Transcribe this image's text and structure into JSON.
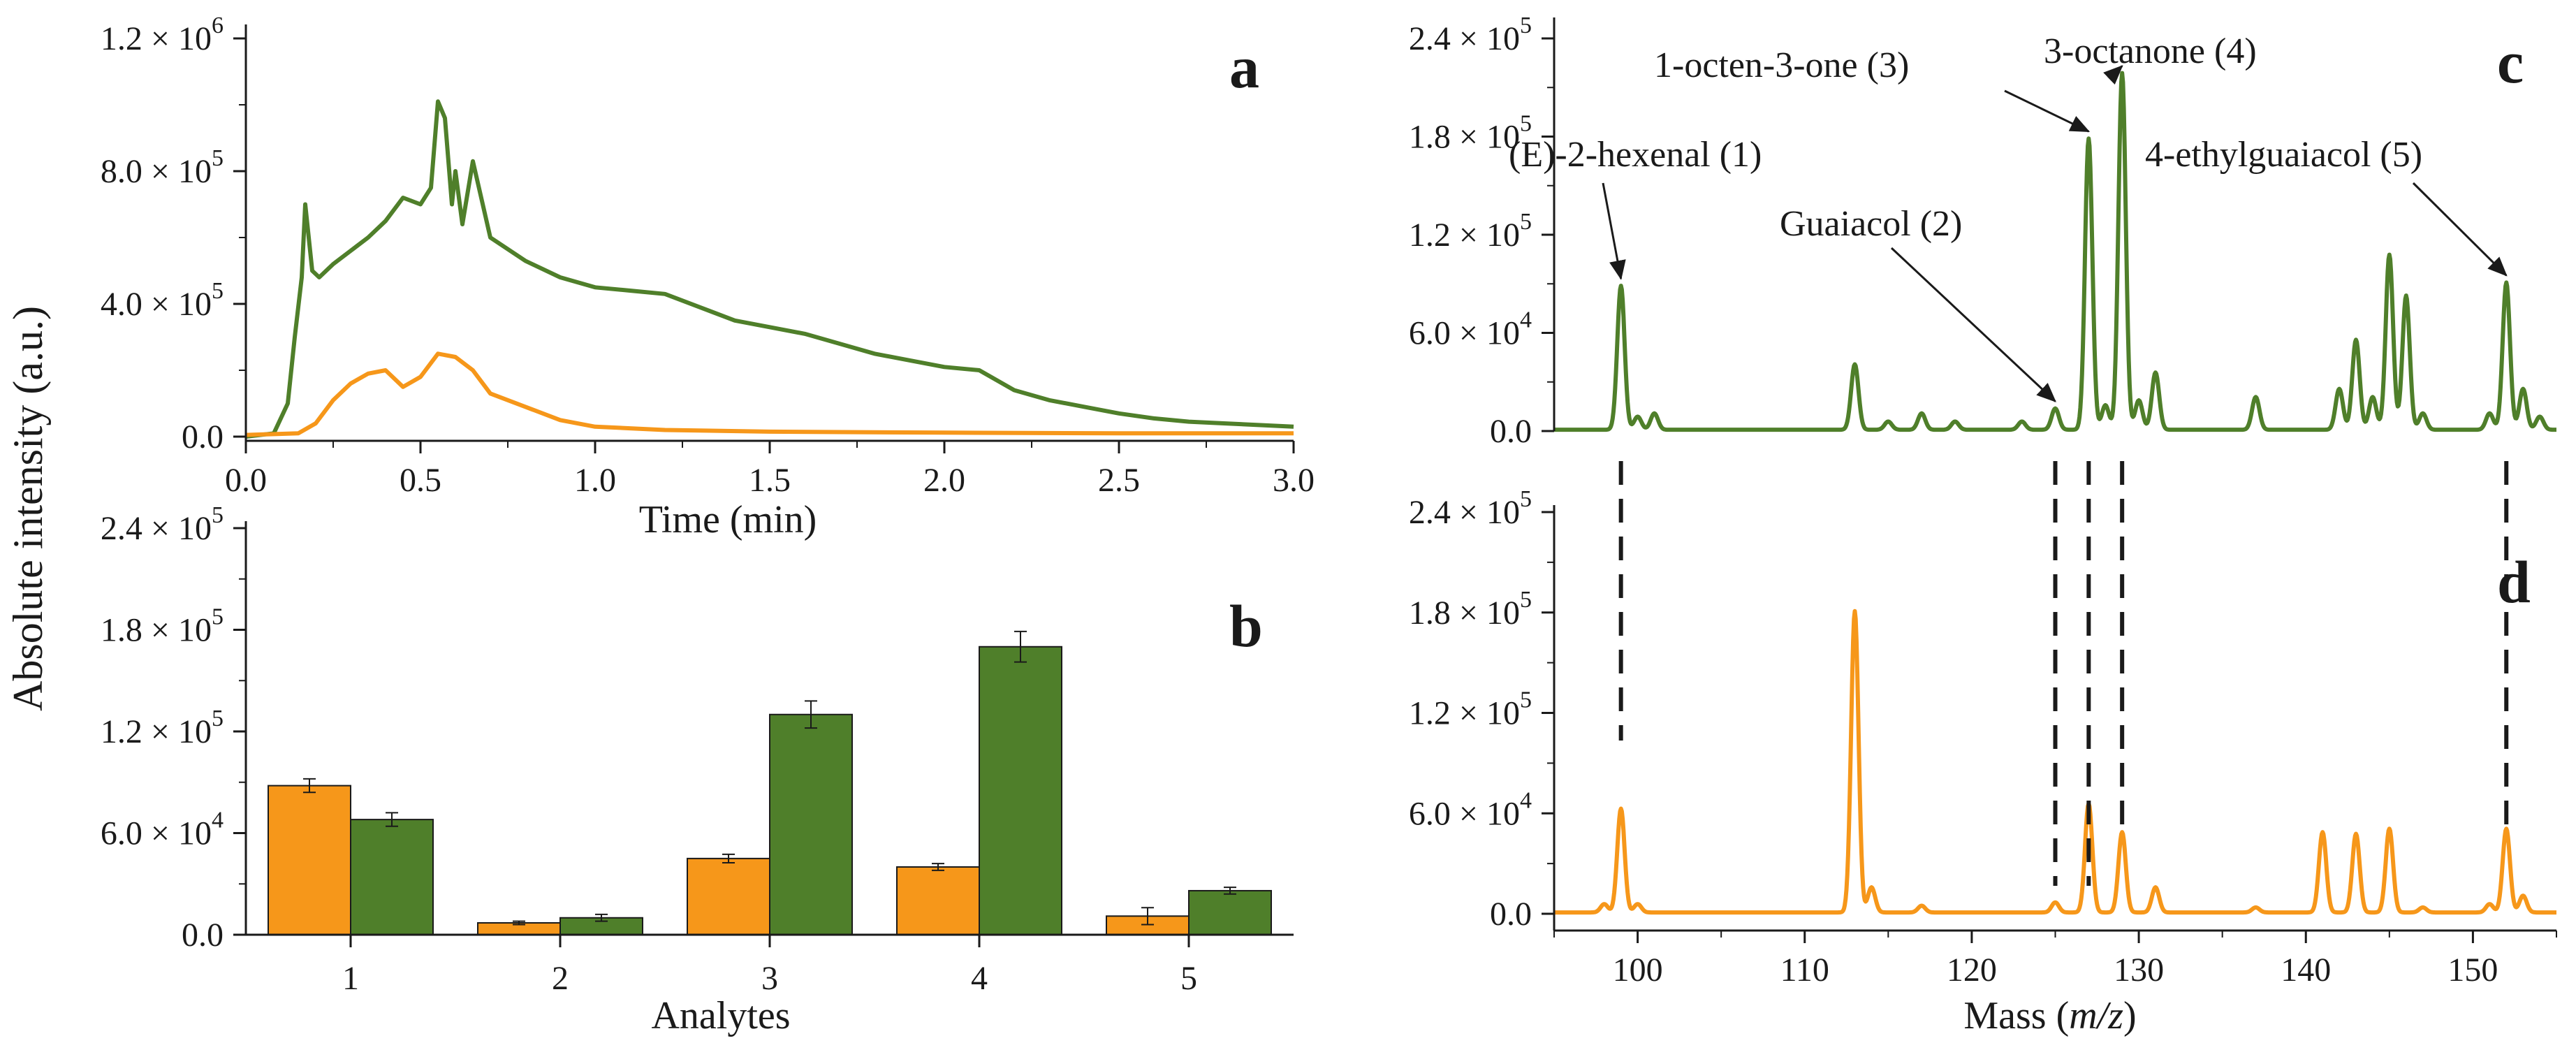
{
  "colors": {
    "green": "#4f7f2a",
    "orange": "#f6971a",
    "axis": "#1a1a1a"
  },
  "shared": {
    "ylabel": "Absolute intensity (a.u.)",
    "xlabel_mass_prefix": "Mass (",
    "xlabel_mass_italic": "m/z",
    "xlabel_mass_suffix": ")"
  },
  "chart_data": [
    {
      "id": "a",
      "panel_label": "a",
      "type": "line",
      "xlabel": "Time (min)",
      "xlim": [
        0,
        3.0
      ],
      "xticks": [
        0.0,
        0.5,
        1.0,
        1.5,
        2.0,
        2.5,
        3.0
      ],
      "xtick_labels": [
        "0.0",
        "0.5",
        "1.0",
        "1.5",
        "2.0",
        "2.5",
        "3.0"
      ],
      "ylim": [
        0,
        1200000
      ],
      "yticks": [
        0,
        400000,
        800000,
        1200000
      ],
      "ytick_labels": [
        {
          "m": "0.0",
          "e": ""
        },
        {
          "m": "4.0 × 10",
          "e": "5"
        },
        {
          "m": "8.0 × 10",
          "e": "5"
        },
        {
          "m": "1.2 × 10",
          "e": "6"
        }
      ],
      "series": [
        {
          "name": "green",
          "color": "#4f7f2a",
          "x": [
            0,
            0.08,
            0.12,
            0.14,
            0.16,
            0.17,
            0.19,
            0.21,
            0.25,
            0.3,
            0.35,
            0.4,
            0.45,
            0.5,
            0.53,
            0.55,
            0.57,
            0.59,
            0.6,
            0.62,
            0.65,
            0.7,
            0.8,
            0.9,
            1.0,
            1.1,
            1.2,
            1.3,
            1.4,
            1.5,
            1.6,
            1.7,
            1.8,
            1.9,
            2.0,
            2.1,
            2.2,
            2.3,
            2.4,
            2.5,
            2.6,
            2.7,
            2.8,
            2.9,
            3.0
          ],
          "values": [
            0,
            10000,
            100000,
            300000,
            480000,
            700000,
            500000,
            480000,
            520000,
            560000,
            600000,
            650000,
            720000,
            700000,
            750000,
            1010000,
            960000,
            700000,
            800000,
            640000,
            830000,
            600000,
            530000,
            480000,
            450000,
            440000,
            430000,
            390000,
            350000,
            330000,
            310000,
            280000,
            250000,
            230000,
            210000,
            200000,
            140000,
            110000,
            90000,
            70000,
            55000,
            45000,
            40000,
            35000,
            30000
          ]
        },
        {
          "name": "orange",
          "color": "#f6971a",
          "x": [
            0,
            0.15,
            0.2,
            0.25,
            0.3,
            0.35,
            0.4,
            0.45,
            0.5,
            0.55,
            0.6,
            0.65,
            0.7,
            0.8,
            0.9,
            1.0,
            1.1,
            1.2,
            1.5,
            2.0,
            2.5,
            3.0
          ],
          "values": [
            5000,
            10000,
            40000,
            110000,
            160000,
            190000,
            200000,
            150000,
            180000,
            250000,
            240000,
            200000,
            130000,
            90000,
            50000,
            30000,
            25000,
            20000,
            15000,
            12000,
            10000,
            10000
          ]
        }
      ]
    },
    {
      "id": "b",
      "panel_label": "b",
      "type": "bar",
      "xlabel": "Analytes",
      "categories": [
        "1",
        "2",
        "3",
        "4",
        "5"
      ],
      "ylim": [
        0,
        240000
      ],
      "yticks": [
        0,
        60000,
        120000,
        180000,
        240000
      ],
      "ytick_labels": [
        {
          "m": "0.0",
          "e": ""
        },
        {
          "m": "6.0 × 10",
          "e": "4"
        },
        {
          "m": "1.2 × 10",
          "e": "5"
        },
        {
          "m": "1.8 × 10",
          "e": "5"
        },
        {
          "m": "2.4 × 10",
          "e": "5"
        }
      ],
      "series": [
        {
          "name": "orange",
          "color": "#f6971a",
          "values": [
            88000,
            7000,
            45000,
            40000,
            11000
          ],
          "errors": [
            4000,
            1000,
            2500,
            2000,
            5000
          ]
        },
        {
          "name": "green",
          "color": "#4f7f2a",
          "values": [
            68000,
            10000,
            130000,
            170000,
            26000
          ],
          "errors": [
            4000,
            2000,
            8000,
            9000,
            2000
          ]
        }
      ]
    },
    {
      "id": "c",
      "panel_label": "c",
      "type": "line",
      "xlim": [
        95,
        155
      ],
      "ylim": [
        0,
        240000
      ],
      "yticks": [
        0,
        60000,
        120000,
        180000,
        240000
      ],
      "ytick_labels": [
        {
          "m": "0.0",
          "e": ""
        },
        {
          "m": "6.0 × 10",
          "e": "4"
        },
        {
          "m": "1.2 × 10",
          "e": "5"
        },
        {
          "m": "1.8 × 10",
          "e": "5"
        },
        {
          "m": "2.4 × 10",
          "e": "5"
        }
      ],
      "series": [
        {
          "name": "green",
          "color": "#4f7f2a",
          "peaks": [
            {
              "x": 99.0,
              "y": 88000
            },
            {
              "x": 100.0,
              "y": 8000
            },
            {
              "x": 101.0,
              "y": 10000
            },
            {
              "x": 113.0,
              "y": 40000
            },
            {
              "x": 115.0,
              "y": 5000
            },
            {
              "x": 117.0,
              "y": 10000
            },
            {
              "x": 119.0,
              "y": 5000
            },
            {
              "x": 123.0,
              "y": 5000
            },
            {
              "x": 125.0,
              "y": 13000
            },
            {
              "x": 127.0,
              "y": 178000
            },
            {
              "x": 128.0,
              "y": 15000
            },
            {
              "x": 129.0,
              "y": 218000
            },
            {
              "x": 130.0,
              "y": 18000
            },
            {
              "x": 131.0,
              "y": 35000
            },
            {
              "x": 137.0,
              "y": 20000
            },
            {
              "x": 142.0,
              "y": 25000
            },
            {
              "x": 143.0,
              "y": 55000
            },
            {
              "x": 144.0,
              "y": 20000
            },
            {
              "x": 145.0,
              "y": 107000
            },
            {
              "x": 146.0,
              "y": 82000
            },
            {
              "x": 147.0,
              "y": 10000
            },
            {
              "x": 151.0,
              "y": 10000
            },
            {
              "x": 152.0,
              "y": 90000
            },
            {
              "x": 153.0,
              "y": 25000
            },
            {
              "x": 154.0,
              "y": 8000
            }
          ]
        }
      ],
      "annotations": [
        {
          "text": "(E)-2-hexenal (1)",
          "x": 99.0,
          "y": 88000
        },
        {
          "text": "Guaiacol (2)",
          "x": 125.0,
          "y": 13000
        },
        {
          "text": "1-octen-3-one (3)",
          "x": 127.0,
          "y": 178000
        },
        {
          "text": "3-octanone (4)",
          "x": 129.0,
          "y": 218000
        },
        {
          "text": "4-ethylguaiacol (5)",
          "x": 152.0,
          "y": 90000
        }
      ]
    },
    {
      "id": "d",
      "panel_label": "d",
      "type": "line",
      "xlim": [
        95,
        155
      ],
      "xticks": [
        100,
        110,
        120,
        130,
        140,
        150
      ],
      "xtick_labels": [
        "100",
        "110",
        "120",
        "130",
        "140",
        "150"
      ],
      "ylim": [
        0,
        240000
      ],
      "yticks": [
        0,
        60000,
        120000,
        180000,
        240000
      ],
      "ytick_labels": [
        {
          "m": "0.0",
          "e": ""
        },
        {
          "m": "6.0 × 10",
          "e": "4"
        },
        {
          "m": "1.2 × 10",
          "e": "5"
        },
        {
          "m": "1.8 × 10",
          "e": "5"
        },
        {
          "m": "2.4 × 10",
          "e": "5"
        }
      ],
      "series": [
        {
          "name": "orange",
          "color": "#f6971a",
          "peaks": [
            {
              "x": 98.0,
              "y": 5000
            },
            {
              "x": 99.0,
              "y": 62000
            },
            {
              "x": 100.0,
              "y": 5000
            },
            {
              "x": 113.0,
              "y": 180000
            },
            {
              "x": 114.0,
              "y": 15000
            },
            {
              "x": 117.0,
              "y": 4000
            },
            {
              "x": 125.0,
              "y": 6000
            },
            {
              "x": 127.0,
              "y": 65000
            },
            {
              "x": 129.0,
              "y": 48000
            },
            {
              "x": 131.0,
              "y": 15000
            },
            {
              "x": 137.0,
              "y": 3000
            },
            {
              "x": 141.0,
              "y": 48000
            },
            {
              "x": 143.0,
              "y": 47000
            },
            {
              "x": 145.0,
              "y": 50000
            },
            {
              "x": 147.0,
              "y": 3000
            },
            {
              "x": 151.0,
              "y": 5000
            },
            {
              "x": 152.0,
              "y": 50000
            },
            {
              "x": 153.0,
              "y": 10000
            }
          ]
        }
      ],
      "dashed_markers": [
        99.0,
        125.0,
        127.0,
        129.0,
        152.0
      ]
    }
  ]
}
